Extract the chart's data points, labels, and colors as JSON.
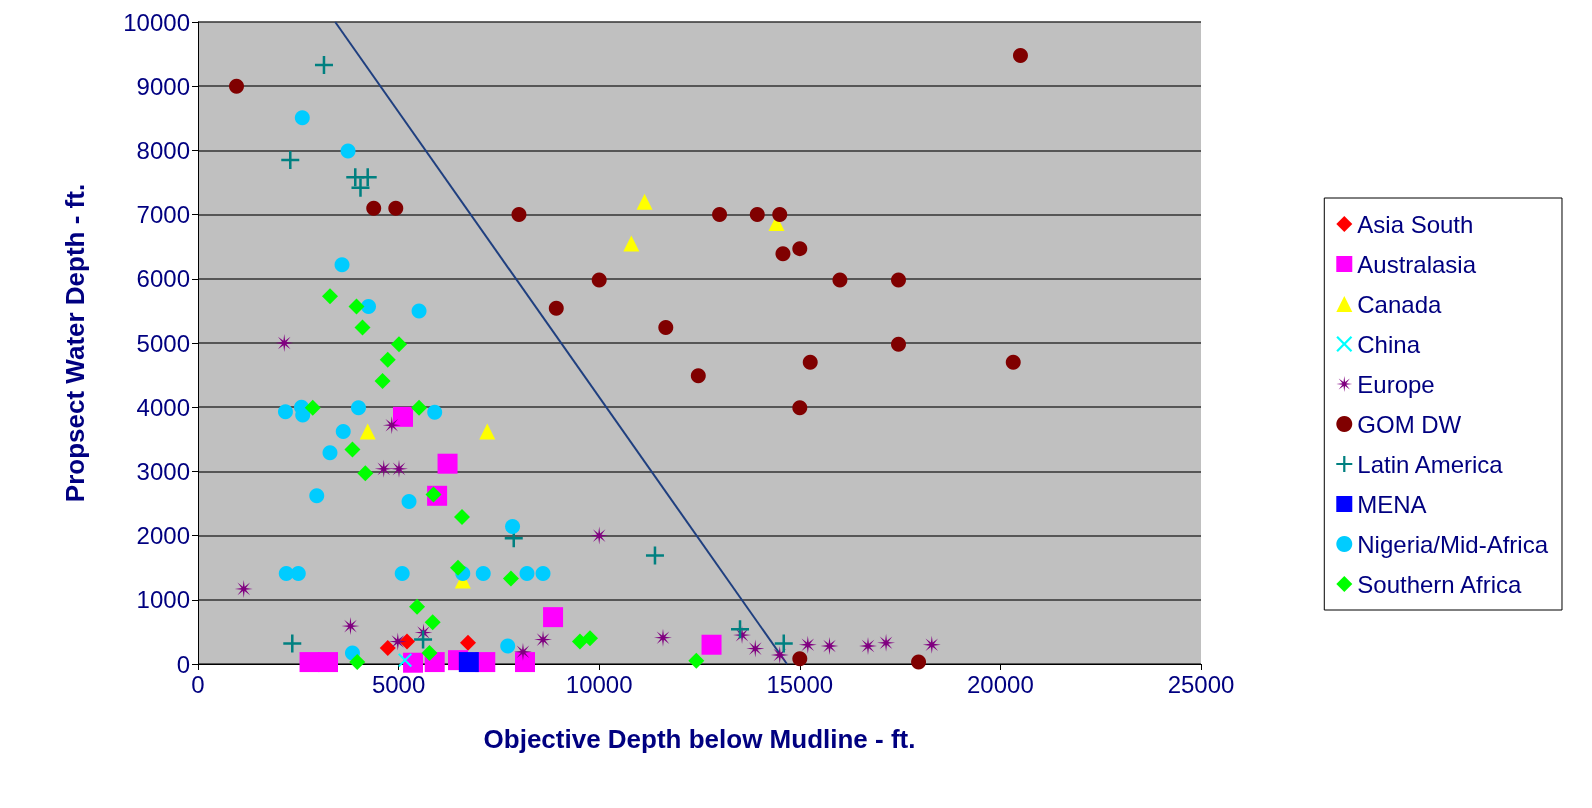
{
  "chart_data": {
    "type": "scatter",
    "xlabel": "Objective Depth below Mudline - ft.",
    "ylabel": "Propsect Water Depth - ft.",
    "xlim": [
      0,
      25000
    ],
    "xticks": [
      0,
      5000,
      10000,
      15000,
      20000,
      25000
    ],
    "ylim": [
      0,
      10000
    ],
    "yticks": [
      0,
      1000,
      2000,
      3000,
      4000,
      5000,
      6000,
      7000,
      8000,
      9000,
      10000
    ],
    "grid": "y",
    "legend": "right",
    "series": [
      {
        "name": "Asia South",
        "color": "#ff0000",
        "marker": "diamond",
        "x": [
          4730,
          5210,
          6730
        ],
        "values": [
          250,
          350,
          330
        ]
      },
      {
        "name": "Australasia",
        "color": "#ff00ff",
        "marker": "square",
        "x": [
          2780,
          3240,
          5110,
          6220,
          5960,
          8850,
          5360,
          5900,
          6480,
          7160,
          8150,
          12800
        ],
        "values": [
          30,
          30,
          3850,
          3120,
          2620,
          730,
          20,
          30,
          60,
          30,
          30,
          300
        ]
      },
      {
        "name": "Canada",
        "color": "#ffff00",
        "marker": "triangle",
        "x": [
          11130,
          10800,
          14420,
          4230,
          7210,
          6600
        ],
        "values": [
          7200,
          6550,
          6870,
          3620,
          3620,
          1300
        ]
      },
      {
        "name": "China",
        "color": "#00ffff",
        "marker": "cross",
        "x": [
          5160
        ],
        "values": [
          60
        ]
      },
      {
        "name": "Europe",
        "color": "#800080",
        "marker": "star",
        "x": [
          2150,
          1140,
          3800,
          4830,
          4630,
          5010,
          10000,
          4980,
          5620,
          8100,
          8600,
          11590,
          13560,
          13890,
          14500,
          15200,
          15740,
          16700,
          17150,
          18290
        ],
        "values": [
          5000,
          1170,
          590,
          3720,
          3040,
          3040,
          2000,
          350,
          490,
          190,
          380,
          410,
          450,
          240,
          140,
          300,
          280,
          280,
          330,
          300
        ]
      },
      {
        "name": "GOM DW",
        "color": "#800000",
        "marker": "circle",
        "x": [
          960,
          20500,
          4380,
          4930,
          8000,
          13000,
          13940,
          14500,
          15000,
          14580,
          10000,
          16000,
          17460,
          8930,
          11660,
          15260,
          20320,
          17460,
          12470,
          15000,
          15000,
          17960
        ],
        "values": [
          9000,
          9480,
          7100,
          7100,
          7000,
          7000,
          7000,
          7000,
          6470,
          6390,
          5980,
          5980,
          5980,
          5540,
          5240,
          4700,
          4700,
          4980,
          4490,
          3990,
          80,
          30
        ]
      },
      {
        "name": "Latin America",
        "color": "#008080",
        "marker": "plus",
        "x": [
          3140,
          2300,
          3920,
          4230,
          4050,
          11390,
          7870,
          13510,
          2350,
          14600,
          5610
        ],
        "values": [
          9330,
          7850,
          7580,
          7580,
          7420,
          1690,
          1960,
          540,
          320,
          320,
          380
        ]
      },
      {
        "name": "MENA",
        "color": "#0000ff",
        "marker": "square",
        "x": [
          6750
        ],
        "values": [
          30
        ]
      },
      {
        "name": "Nigeria/Mid-Africa",
        "color": "#00ccff",
        "marker": "circle",
        "x": [
          2600,
          3740,
          3590,
          4250,
          5510,
          2180,
          2580,
          2610,
          4000,
          5900,
          3620,
          3290,
          2960,
          5260,
          7840,
          2200,
          2500,
          5090,
          6600,
          7110,
          8200,
          8600,
          3850,
          7720
        ],
        "values": [
          8510,
          7990,
          6220,
          5570,
          5500,
          3930,
          4000,
          3880,
          3990,
          3920,
          3620,
          3290,
          2620,
          2530,
          2140,
          1410,
          1410,
          1410,
          1410,
          1410,
          1410,
          1410,
          170,
          280
        ]
      },
      {
        "name": "Southern Africa",
        "color": "#00ff00",
        "marker": "diamond",
        "x": [
          3290,
          3950,
          4100,
          5010,
          4730,
          4600,
          2860,
          5510,
          3850,
          4170,
          5870,
          6580,
          6480,
          7800,
          5460,
          5850,
          5770,
          3970,
          9520,
          9770,
          12420
        ],
        "values": [
          5730,
          5570,
          5240,
          4980,
          4740,
          4410,
          3990,
          3990,
          3340,
          2970,
          2640,
          2290,
          1500,
          1330,
          890,
          650,
          170,
          30,
          350,
          400,
          50
        ]
      },
      {
        "type": "line",
        "color": "#1f3f7f",
        "marker": "none",
        "line_style": "solid",
        "x": [
          3420,
          14680
        ],
        "values": [
          10000,
          0
        ]
      }
    ]
  }
}
